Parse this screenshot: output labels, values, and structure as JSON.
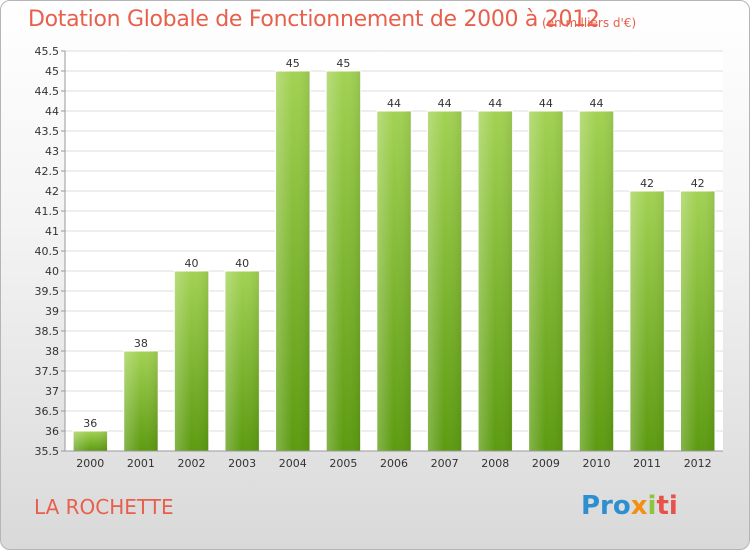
{
  "header": {
    "title": "Dotation Globale de Fonctionnement de 2000 à 2012",
    "unit": "(en milliers d'€)"
  },
  "footer": {
    "commune": "LA ROCHETTE",
    "logo": {
      "p1": "Pro",
      "p2": "x",
      "p3": "i",
      "p4": "ti"
    }
  },
  "colors": {
    "bar_light": "#9ccc4e",
    "bar_dark": "#5f9e12",
    "title": "#e8604c"
  },
  "chart_data": {
    "type": "bar",
    "title": "Dotation Globale de Fonctionnement de 2000 à 2012",
    "subtitle": "(en milliers d'€)",
    "categories": [
      "2000",
      "2001",
      "2002",
      "2003",
      "2004",
      "2005",
      "2006",
      "2007",
      "2008",
      "2009",
      "2010",
      "2011",
      "2012"
    ],
    "values": [
      36,
      38,
      40,
      40,
      45,
      45,
      44,
      44,
      44,
      44,
      44,
      42,
      42
    ],
    "data_labels": [
      "36",
      "38",
      "40",
      "40",
      "45",
      "45",
      "44",
      "44",
      "44",
      "44",
      "44",
      "42",
      "42"
    ],
    "ylim": [
      35.5,
      45.5
    ],
    "yticks": [
      "35.5",
      "36",
      "36.5",
      "37",
      "37.5",
      "38",
      "38.5",
      "39",
      "39.5",
      "40",
      "40.5",
      "41",
      "41.5",
      "42",
      "42.5",
      "43",
      "43.5",
      "44",
      "44.5",
      "45",
      "45.5"
    ],
    "grid": true,
    "xlabel": "",
    "ylabel": ""
  }
}
